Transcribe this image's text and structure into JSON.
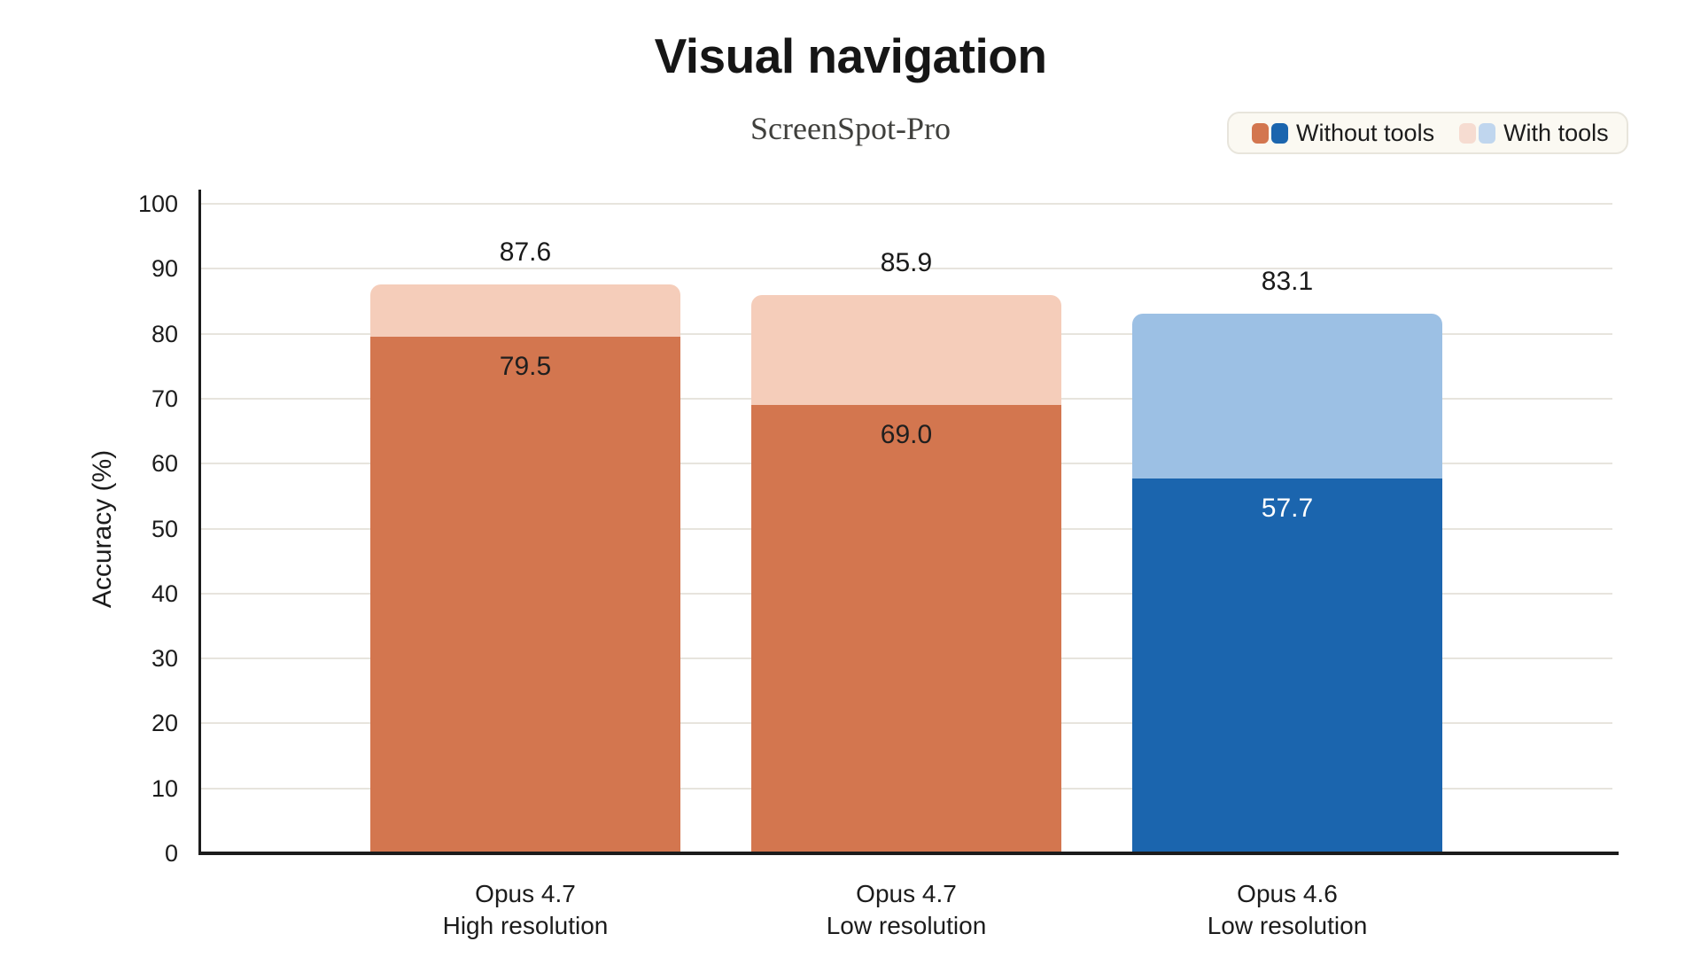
{
  "chart_data": {
    "type": "bar",
    "title": "Visual navigation",
    "subtitle": "ScreenSpot-Pro",
    "ylabel": "Accuracy (%)",
    "ylim": [
      0,
      100
    ],
    "yticks": [
      0,
      10,
      20,
      30,
      40,
      50,
      60,
      70,
      80,
      90,
      100
    ],
    "grid": "horizontal light gridlines",
    "legend": {
      "position": "top-right",
      "items": [
        {
          "label": "Without tools",
          "swatch_colors": [
            "#d3764f",
            "#1b65ae"
          ]
        },
        {
          "label": "With tools",
          "swatch_colors": [
            "#f6dcd1",
            "#c0d6ee"
          ]
        }
      ]
    },
    "categories": [
      {
        "line1": "Opus 4.7",
        "line2": "High resolution"
      },
      {
        "line1": "Opus 4.7",
        "line2": "Low resolution"
      },
      {
        "line1": "Opus 4.6",
        "line2": "Low resolution"
      }
    ],
    "series": [
      {
        "name": "Without tools",
        "values": [
          79.5,
          69.0,
          57.7
        ]
      },
      {
        "name": "With tools",
        "values": [
          87.6,
          85.9,
          83.1
        ]
      }
    ],
    "bar_styles": [
      {
        "solid": "#d3764f",
        "light": "#f5cdba",
        "inner_label_color": "#1f1f1f"
      },
      {
        "solid": "#d3764f",
        "light": "#f5cdba",
        "inner_label_color": "#1f1f1f"
      },
      {
        "solid": "#1b65ae",
        "light": "#9cc0e4",
        "inner_label_color": "#ffffff"
      }
    ],
    "colors": {
      "axis": "#1c1c1c",
      "grid": "#e7e4dd",
      "text": "#1c1c1c",
      "subtitle_text": "#40403d",
      "legend_bg": "#fbf9f2",
      "legend_border": "#e8e5dc",
      "background": "#ffffff"
    }
  }
}
